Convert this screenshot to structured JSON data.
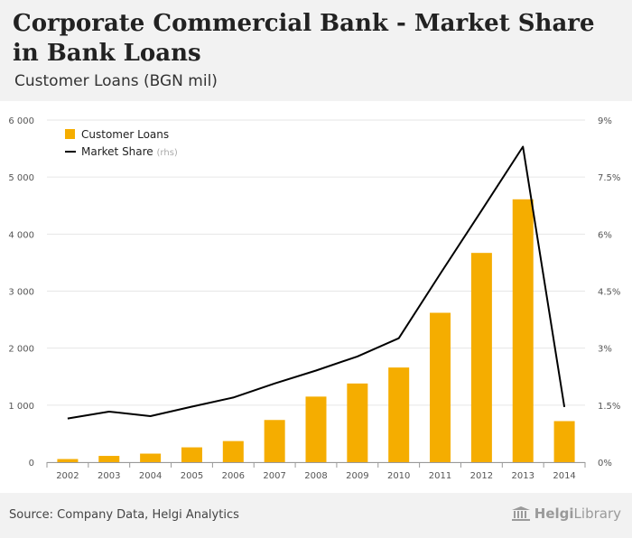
{
  "title": "Corporate Commercial Bank - Market Share in Bank Loans",
  "subtitle": "Customer Loans (BGN mil)",
  "source": "Source: Company Data, Helgi Analytics",
  "logo": {
    "bold": "Helgi",
    "rest": "Library",
    "icon": "library-building-icon"
  },
  "colors": {
    "bar": "#f5ad00",
    "line": "#000000",
    "grid": "#e6e6e6",
    "axis": "#777777"
  },
  "chart_data": {
    "type": "bar+line",
    "title": "Corporate Commercial Bank - Market Share in Bank Loans",
    "subtitle": "Customer Loans (BGN mil)",
    "categories": [
      "2002",
      "2003",
      "2004",
      "2005",
      "2006",
      "2007",
      "2008",
      "2009",
      "2010",
      "2011",
      "2012",
      "2013",
      "2014"
    ],
    "series": [
      {
        "name": "Customer Loans",
        "type": "bar",
        "axis": "left",
        "values": [
          55,
          110,
          150,
          260,
          370,
          740,
          1150,
          1380,
          1660,
          2620,
          3670,
          4610,
          720
        ]
      },
      {
        "name": "Market Share",
        "type": "line",
        "axis": "right",
        "suffix": "(rhs)",
        "values": [
          1.15,
          1.33,
          1.21,
          1.46,
          1.7,
          2.07,
          2.41,
          2.78,
          3.26,
          4.95,
          6.62,
          8.3,
          1.45
        ]
      }
    ],
    "y_left": {
      "ylim": [
        0,
        6000
      ],
      "ticks": [
        "0",
        "1 000",
        "2 000",
        "3 000",
        "4 000",
        "5 000",
        "6 000"
      ]
    },
    "y_right": {
      "ylim": [
        0,
        9
      ],
      "ticks": [
        "0%",
        "1.5%",
        "3%",
        "4.5%",
        "6%",
        "7.5%",
        "9%"
      ]
    },
    "legend": {
      "position": "top-left",
      "items": [
        {
          "label": "Customer Loans",
          "suffix": ""
        },
        {
          "label": "Market Share",
          "suffix": "(rhs)"
        }
      ]
    },
    "grid": true
  }
}
